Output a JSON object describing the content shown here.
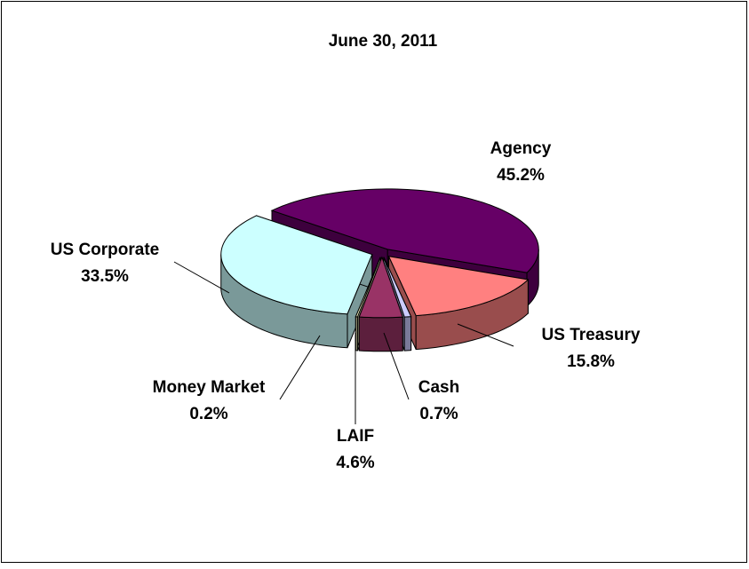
{
  "chart_data": {
    "type": "pie",
    "title": "June 30, 2011",
    "categories": [
      "Agency",
      "US Treasury",
      "Cash",
      "LAIF",
      "Money Market",
      "US Corporate"
    ],
    "values": [
      45.2,
      15.8,
      0.7,
      4.6,
      0.2,
      33.5
    ],
    "value_labels": [
      "45.2%",
      "15.8%",
      "0.7%",
      "4.6%",
      "0.2%",
      "33.5%"
    ],
    "colors": [
      "#660066",
      "#ff8080",
      "#ccccff",
      "#993366",
      "#ffffcc",
      "#ccffff"
    ]
  }
}
